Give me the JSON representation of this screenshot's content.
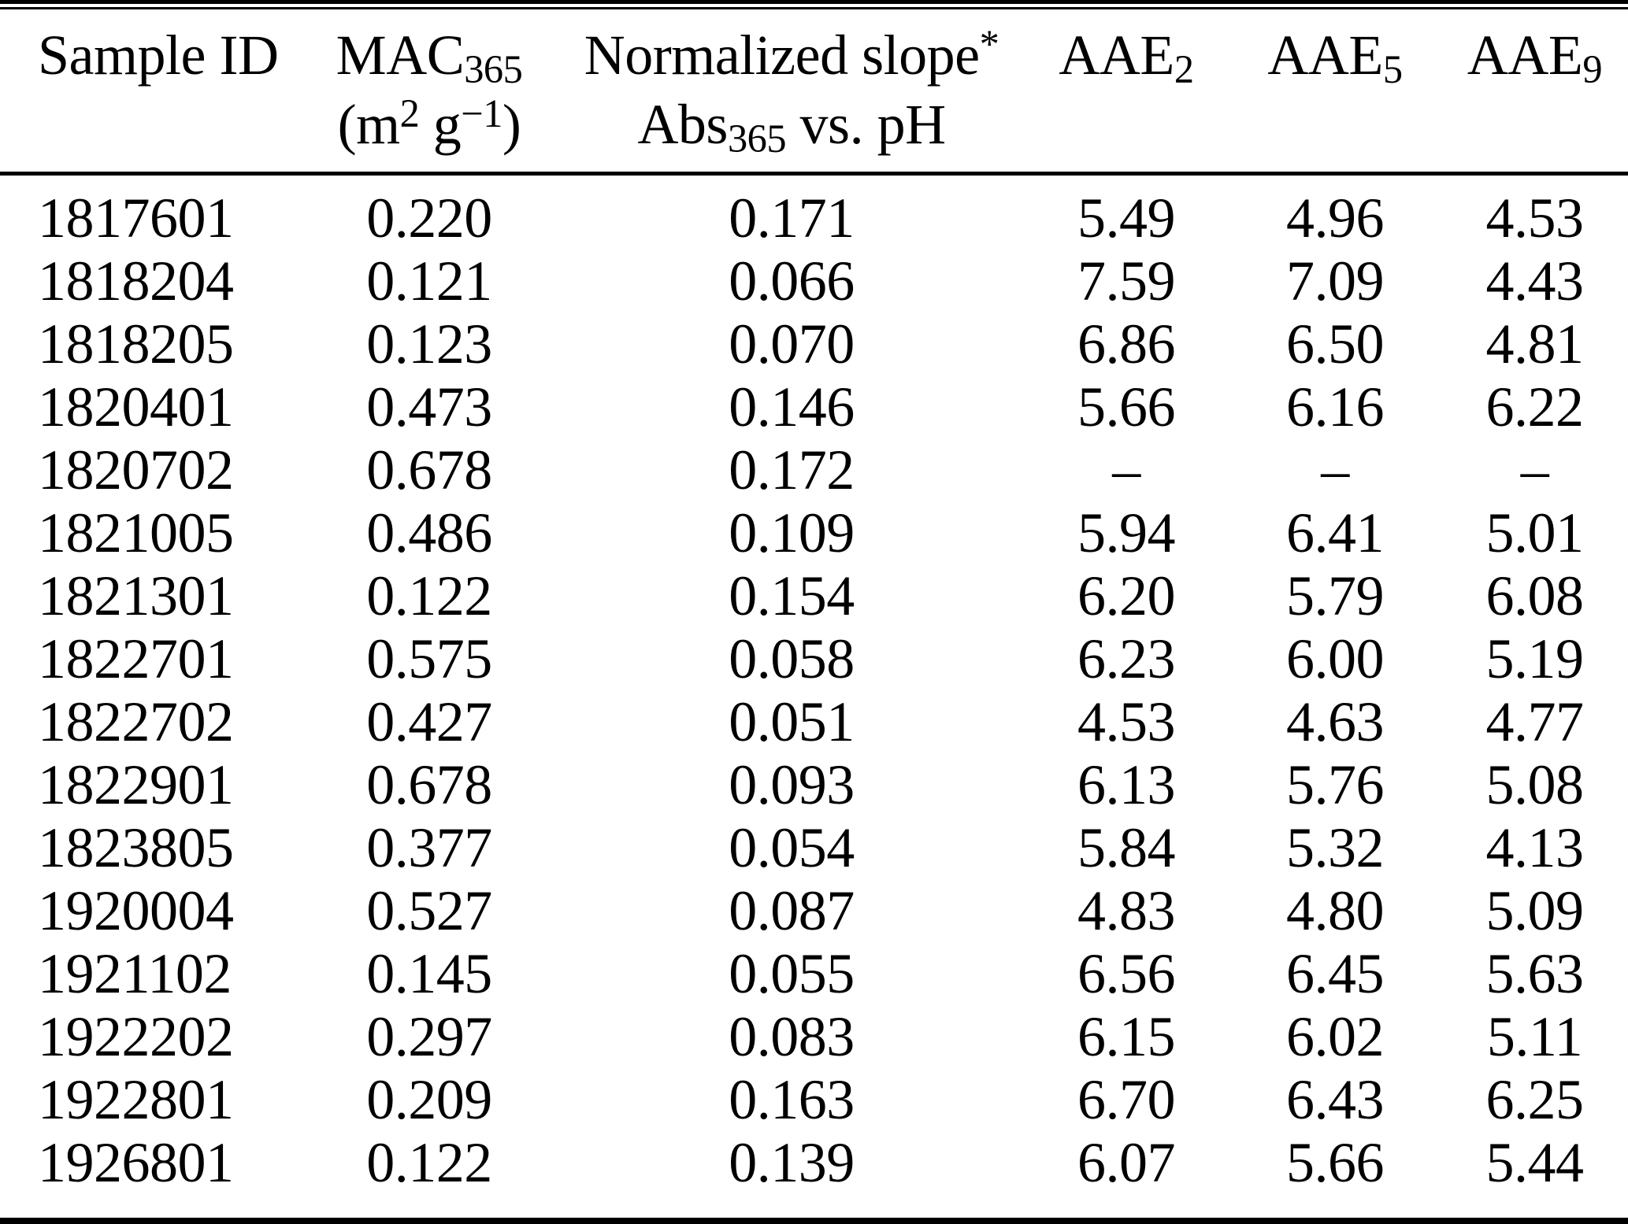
{
  "table": {
    "header": {
      "sample_id": "Sample ID",
      "mac": {
        "main": "MAC",
        "sub": "365",
        "unit_pre": "(m",
        "unit_sup1": "2",
        "unit_mid": " g",
        "unit_sup2": "−1",
        "unit_post": ")"
      },
      "slope": {
        "main": "Normalized slope",
        "sup": "*",
        "line2_main": "Abs",
        "line2_sub": "365",
        "line2_rest": " vs. pH"
      },
      "aae2": {
        "main": "AAE",
        "sub": "2"
      },
      "aae5": {
        "main": "AAE",
        "sub": "5"
      },
      "aae9": {
        "main": "AAE",
        "sub": "9"
      }
    },
    "missing_value_symbol": "–",
    "rows": [
      [
        "1817601",
        "0.220",
        "0.171",
        "5.49",
        "4.96",
        "4.53"
      ],
      [
        "1818204",
        "0.121",
        "0.066",
        "7.59",
        "7.09",
        "4.43"
      ],
      [
        "1818205",
        "0.123",
        "0.070",
        "6.86",
        "6.50",
        "4.81"
      ],
      [
        "1820401",
        "0.473",
        "0.146",
        "5.66",
        "6.16",
        "6.22"
      ],
      [
        "1820702",
        "0.678",
        "0.172",
        "–",
        "–",
        "–"
      ],
      [
        "1821005",
        "0.486",
        "0.109",
        "5.94",
        "6.41",
        "5.01"
      ],
      [
        "1821301",
        "0.122",
        "0.154",
        "6.20",
        "5.79",
        "6.08"
      ],
      [
        "1822701",
        "0.575",
        "0.058",
        "6.23",
        "6.00",
        "5.19"
      ],
      [
        "1822702",
        "0.427",
        "0.051",
        "4.53",
        "4.63",
        "4.77"
      ],
      [
        "1822901",
        "0.678",
        "0.093",
        "6.13",
        "5.76",
        "5.08"
      ],
      [
        "1823805",
        "0.377",
        "0.054",
        "5.84",
        "5.32",
        "4.13"
      ],
      [
        "1920004",
        "0.527",
        "0.087",
        "4.83",
        "4.80",
        "5.09"
      ],
      [
        "1921102",
        "0.145",
        "0.055",
        "6.56",
        "6.45",
        "5.63"
      ],
      [
        "1922202",
        "0.297",
        "0.083",
        "6.15",
        "6.02",
        "5.11"
      ],
      [
        "1922801",
        "0.209",
        "0.163",
        "6.70",
        "6.43",
        "6.25"
      ],
      [
        "1926801",
        "0.122",
        "0.139",
        "6.07",
        "5.66",
        "5.44"
      ]
    ]
  },
  "colors": {
    "text": "#000000",
    "background": "#ffffff",
    "rule": "#000000"
  }
}
